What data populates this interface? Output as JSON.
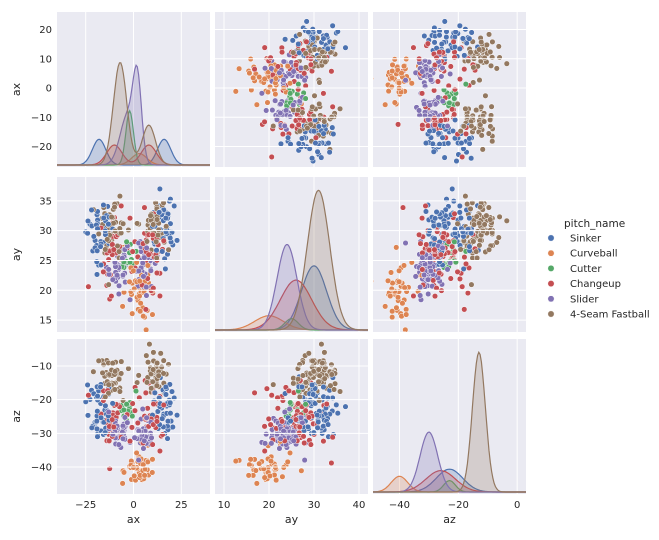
{
  "chart_data": {
    "type": "pairplot",
    "variables": [
      "ax",
      "ay",
      "az"
    ],
    "hue": "pitch_name",
    "legend_position": "right",
    "grid": true,
    "axes": {
      "ax": {
        "lim": [
          -40,
          40
        ],
        "ticks": [
          -25,
          0,
          25
        ],
        "ticklabels": [
          "−25",
          "0",
          "25"
        ],
        "label": "ax"
      },
      "ay": {
        "lim": [
          8,
          42
        ],
        "ticks": [
          10,
          20,
          30,
          40
        ],
        "ticklabels": [
          "10",
          "20",
          "30",
          "40"
        ],
        "label": "ay"
      },
      "az": {
        "lim": [
          -49,
          3
        ],
        "ticks": [
          -40,
          -20,
          0
        ],
        "ticklabels": [
          "−40",
          "−20",
          "0"
        ],
        "label": "az"
      }
    },
    "row_axes": {
      "ax": {
        "lim": [
          -27,
          26
        ],
        "ticks": [
          -20,
          -10,
          0,
          10,
          20
        ],
        "ticklabels": [
          "−20",
          "−10",
          "0",
          "10",
          "20"
        ],
        "label": "ax"
      },
      "ay": {
        "lim": [
          13,
          39
        ],
        "ticks": [
          15,
          20,
          25,
          30,
          35
        ],
        "ticklabels": [
          "15",
          "20",
          "25",
          "30",
          "35"
        ],
        "label": "ay"
      },
      "az": {
        "lim": [
          -48,
          -2
        ],
        "ticks": [
          -40,
          -30,
          -20,
          -10
        ],
        "ticklabels": [
          "−40",
          "−30",
          "−20",
          "−10"
        ],
        "label": "az"
      }
    },
    "series": [
      {
        "name": "Sinker",
        "color": "#4c72b0",
        "clusters": [
          {
            "count": 45,
            "ax": [
              -18,
              3.5
            ],
            "ay": [
              30,
              2.8
            ],
            "az": [
              -23,
              4.5
            ]
          },
          {
            "count": 45,
            "ax": [
              16,
              3.5
            ],
            "ay": [
              30,
              2.8
            ],
            "az": [
              -23,
              4.5
            ]
          }
        ],
        "kde": {
          "ax": {
            "peaks": [
              [
                -18,
                3.5,
                0.5
              ],
              [
                16,
                3.5,
                0.5
              ]
            ]
          },
          "ay": {
            "peaks": [
              [
                30,
                2.8,
                1
              ]
            ]
          },
          "az": {
            "peaks": [
              [
                -23,
                4.5,
                1
              ]
            ]
          }
        },
        "kde_scale": {
          "ax": 0.36,
          "ay": 0.45,
          "az": 0.16
        }
      },
      {
        "name": "Curveball",
        "color": "#dd8452",
        "clusters": [
          {
            "count": 45,
            "ax": [
              3,
              4
            ],
            "ay": [
              20,
              3.2
            ],
            "az": [
              -40,
              2.8
            ]
          }
        ],
        "kde": {
          "ax": {
            "peaks": [
              [
                3,
                4,
                1
              ]
            ]
          },
          "ay": {
            "peaks": [
              [
                20,
                3.2,
                1
              ]
            ]
          },
          "az": {
            "peaks": [
              [
                -40,
                2.8,
                1
              ]
            ]
          }
        },
        "kde_scale": {
          "ax": 0.08,
          "ay": 0.1,
          "az": 0.11
        }
      },
      {
        "name": "Cutter",
        "color": "#55a868",
        "clusters": [
          {
            "count": 14,
            "ax": [
              -2,
              2
            ],
            "ay": [
              25,
              1.5
            ],
            "az": [
              -23,
              2
            ]
          }
        ],
        "kde": {
          "ax": {
            "peaks": [
              [
                -2,
                2,
                1
              ]
            ]
          },
          "ay": {
            "peaks": [
              [
                25,
                1.5,
                1
              ]
            ]
          },
          "az": {
            "peaks": [
              [
                -23,
                2,
                1
              ]
            ]
          }
        },
        "kde_scale": {
          "ax": 0.38,
          "ay": 0.08,
          "az": 0.08
        }
      },
      {
        "name": "Changeup",
        "color": "#c44e52",
        "clusters": [
          {
            "count": 38,
            "ax": [
              -10,
              4
            ],
            "ay": [
              26,
              3.5
            ],
            "az": [
              -26,
              5
            ]
          },
          {
            "count": 38,
            "ax": [
              8,
              4
            ],
            "ay": [
              26,
              3.5
            ],
            "az": [
              -26,
              5
            ]
          }
        ],
        "kde": {
          "ax": {
            "peaks": [
              [
                -10,
                4,
                0.5
              ],
              [
                8,
                4,
                0.5
              ]
            ]
          },
          "ay": {
            "peaks": [
              [
                26,
                3.5,
                1
              ]
            ]
          },
          "az": {
            "peaks": [
              [
                -26,
                5,
                1
              ]
            ]
          }
        },
        "kde_scale": {
          "ax": 0.28,
          "ay": 0.35,
          "az": 0.15
        }
      },
      {
        "name": "Slider",
        "color": "#8172b3",
        "clusters": [
          {
            "count": 40,
            "ax": [
              -8,
              3
            ],
            "ay": [
              24,
              2.2
            ],
            "az": [
              -30,
              3
            ]
          },
          {
            "count": 40,
            "ax": [
              5,
              3
            ],
            "ay": [
              24,
              2.2
            ],
            "az": [
              -30,
              3
            ]
          }
        ],
        "kde": {
          "ax": {
            "peaks": [
              [
                -3,
                4,
                0.4
              ],
              [
                2,
                2.2,
                0.6
              ]
            ]
          },
          "ay": {
            "peaks": [
              [
                24,
                2.2,
                1
              ]
            ]
          },
          "az": {
            "peaks": [
              [
                -30,
                3,
                1
              ]
            ]
          }
        },
        "kde_scale": {
          "ax": 0.88,
          "ay": 0.6,
          "az": 0.42
        }
      },
      {
        "name": "4-Seam Fastball",
        "color": "#937860",
        "clusters": [
          {
            "count": 45,
            "ax": [
              -11,
              3.5
            ],
            "ay": [
              31,
              2.5
            ],
            "az": [
              -13,
              3
            ]
          },
          {
            "count": 45,
            "ax": [
              10,
              3.5
            ],
            "ay": [
              31,
              2.5
            ],
            "az": [
              -13,
              3
            ]
          }
        ],
        "kde": {
          "ax": {
            "peaks": [
              [
                -7,
                3.5,
                0.72
              ],
              [
                8,
                3.5,
                0.28
              ]
            ]
          },
          "ay": {
            "peaks": [
              [
                31,
                2.5,
                1
              ]
            ]
          },
          "az": {
            "peaks": [
              [
                -13,
                2.2,
                1
              ]
            ]
          }
        },
        "kde_scale": {
          "ax": 1.0,
          "ay": 0.98,
          "az": 0.98
        }
      }
    ],
    "legend": {
      "title": "pitch_name",
      "entries": [
        "Sinker",
        "Curveball",
        "Cutter",
        "Changeup",
        "Slider",
        "4-Seam Fastball"
      ]
    }
  }
}
